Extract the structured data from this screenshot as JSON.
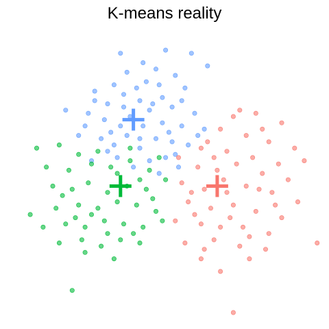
{
  "chart_data": {
    "type": "scatter",
    "title": "K-means reality",
    "xlabel": "",
    "ylabel": "",
    "grid": false,
    "axes_visible": false,
    "xlim": [
      -4.6,
      4.5
    ],
    "ylim": [
      -4.3,
      4.5
    ],
    "centroid_marker": "plus",
    "series": [
      {
        "color": "#619CFF",
        "centroid": [
          -1.1,
          1.8
        ],
        "points": [
          [
            -1.5,
            3.9
          ],
          [
            -0.8,
            3.6
          ],
          [
            -0.1,
            4.0
          ],
          [
            0.7,
            3.9
          ],
          [
            -1.3,
            3.3
          ],
          [
            -0.4,
            3.4
          ],
          [
            0.2,
            3.2
          ],
          [
            1.2,
            3.5
          ],
          [
            -2.3,
            2.7
          ],
          [
            -1.7,
            2.9
          ],
          [
            -1.0,
            2.8
          ],
          [
            -0.3,
            2.9
          ],
          [
            0.5,
            2.8
          ],
          [
            -0.9,
            2.4
          ],
          [
            -0.2,
            2.5
          ],
          [
            0.4,
            2.4
          ],
          [
            -3.2,
            2.1
          ],
          [
            -2.5,
            2.0
          ],
          [
            -1.9,
            2.3
          ],
          [
            -1.4,
            2.2
          ],
          [
            -0.6,
            2.1
          ],
          [
            0.1,
            2.2
          ],
          [
            0.8,
            2.0
          ],
          [
            -2.6,
            1.6
          ],
          [
            -2.0,
            1.8
          ],
          [
            -1.5,
            1.6
          ],
          [
            -0.8,
            1.6
          ],
          [
            -0.2,
            1.7
          ],
          [
            0.4,
            1.6
          ],
          [
            1.1,
            1.5
          ],
          [
            -2.1,
            1.2
          ],
          [
            -1.7,
            1.0
          ],
          [
            -1.3,
            1.3
          ],
          [
            -0.9,
            0.9
          ],
          [
            -0.4,
            1.2
          ],
          [
            0.1,
            1.1
          ],
          [
            0.6,
            1.0
          ],
          [
            -2.4,
            0.5
          ],
          [
            -1.6,
            0.6
          ],
          [
            -1.1,
            0.3
          ],
          [
            -0.6,
            0.5
          ],
          [
            -0.1,
            0.6
          ],
          [
            0.3,
            0.3
          ],
          [
            -1.4,
            2.6
          ],
          [
            -0.7,
            3.0
          ],
          [
            0.0,
            1.4
          ],
          [
            -2.8,
            1.3
          ],
          [
            -1.9,
            0.8
          ],
          [
            -0.3,
            0.1
          ],
          [
            0.9,
            1.3
          ],
          [
            -1.2,
            1.9
          ],
          [
            -0.5,
            2.3
          ],
          [
            -1.8,
            1.4
          ],
          [
            0.2,
            0.7
          ],
          [
            -2.3,
            2.4
          ],
          [
            -0.9,
            1.2
          ]
        ]
      },
      {
        "color": "#F8766D",
        "centroid": [
          1.5,
          -0.3
        ],
        "points": [
          [
            2.2,
            2.1
          ],
          [
            2.7,
            2.0
          ],
          [
            3.5,
            1.7
          ],
          [
            1.6,
            1.5
          ],
          [
            2.4,
            1.3
          ],
          [
            3.1,
            1.1
          ],
          [
            1.0,
            0.9
          ],
          [
            1.8,
            0.8
          ],
          [
            2.6,
            0.6
          ],
          [
            3.4,
            0.4
          ],
          [
            4.2,
            0.5
          ],
          [
            0.9,
            0.3
          ],
          [
            1.5,
            0.2
          ],
          [
            2.1,
            0.4
          ],
          [
            2.9,
            0.1
          ],
          [
            3.7,
            -0.1
          ],
          [
            0.4,
            -0.2
          ],
          [
            1.1,
            -0.4
          ],
          [
            1.8,
            -0.5
          ],
          [
            2.4,
            -0.3
          ],
          [
            3.2,
            -0.5
          ],
          [
            4.0,
            -0.8
          ],
          [
            0.6,
            -0.8
          ],
          [
            1.3,
            -1.0
          ],
          [
            2.0,
            -0.9
          ],
          [
            2.7,
            -1.1
          ],
          [
            3.5,
            -1.3
          ],
          [
            0.2,
            -1.4
          ],
          [
            1.0,
            -1.5
          ],
          [
            1.6,
            -1.6
          ],
          [
            2.3,
            -1.6
          ],
          [
            3.1,
            -1.8
          ],
          [
            0.5,
            -2.1
          ],
          [
            1.4,
            -2.0
          ],
          [
            2.2,
            -2.2
          ],
          [
            3.0,
            -2.3
          ],
          [
            1.0,
            -2.6
          ],
          [
            2.5,
            -2.6
          ],
          [
            1.6,
            -3.0
          ],
          [
            4.6,
            -2.1
          ],
          [
            2.0,
            -4.3
          ],
          [
            1.2,
            1.1
          ],
          [
            2.0,
            1.9
          ],
          [
            0.7,
            -0.5
          ],
          [
            1.9,
            -1.3
          ],
          [
            2.8,
            -0.4
          ],
          [
            1.4,
            0.6
          ],
          [
            3.9,
            0.9
          ],
          [
            0.3,
            0.6
          ],
          [
            2.5,
            -1.9
          ],
          [
            1.7,
            -0.1
          ],
          [
            2.9,
            1.5
          ],
          [
            0.8,
            -1.2
          ],
          [
            3.3,
            -0.9
          ],
          [
            1.1,
            -2.3
          ]
        ]
      },
      {
        "color": "#00BA38",
        "centroid": [
          -1.5,
          -0.3
        ],
        "points": [
          [
            -4.1,
            0.9
          ],
          [
            -3.4,
            1.0
          ],
          [
            -2.8,
            0.7
          ],
          [
            -3.8,
            0.3
          ],
          [
            -3.1,
            0.2
          ],
          [
            -2.4,
            0.4
          ],
          [
            -1.8,
            0.3
          ],
          [
            -1.2,
            0.5
          ],
          [
            -0.6,
            0.2
          ],
          [
            -3.6,
            -0.3
          ],
          [
            -3.0,
            -0.4
          ],
          [
            -2.5,
            -0.2
          ],
          [
            -1.9,
            -0.5
          ],
          [
            -1.3,
            -0.3
          ],
          [
            -0.7,
            -0.4
          ],
          [
            -0.1,
            -0.1
          ],
          [
            -4.3,
            -1.2
          ],
          [
            -3.5,
            -1.0
          ],
          [
            -2.8,
            -0.9
          ],
          [
            -2.2,
            -1.0
          ],
          [
            -1.6,
            -0.8
          ],
          [
            -1.0,
            -0.9
          ],
          [
            -0.4,
            -1.1
          ],
          [
            -3.9,
            -1.6
          ],
          [
            -3.2,
            -1.5
          ],
          [
            -2.6,
            -1.6
          ],
          [
            -2.0,
            -1.4
          ],
          [
            -1.4,
            -1.5
          ],
          [
            -0.8,
            -1.6
          ],
          [
            -0.2,
            -1.4
          ],
          [
            -3.4,
            -2.1
          ],
          [
            -2.7,
            -2.0
          ],
          [
            -2.1,
            -2.2
          ],
          [
            -1.5,
            -2.0
          ],
          [
            -0.9,
            -2.1
          ],
          [
            -1.7,
            -2.6
          ],
          [
            -2.6,
            -2.4
          ],
          [
            -3.0,
            -3.6
          ],
          [
            -1.2,
            0.9
          ],
          [
            -0.3,
            0.6
          ],
          [
            -2.2,
            0.8
          ],
          [
            -3.3,
            -0.6
          ],
          [
            -1.1,
            -1.8
          ],
          [
            -2.4,
            -1.2
          ],
          [
            -0.5,
            -0.7
          ],
          [
            -1.6,
            0.1
          ],
          [
            -2.9,
            -1.3
          ],
          [
            -1.9,
            -1.8
          ],
          [
            -0.9,
            -0.1
          ]
        ]
      }
    ]
  }
}
